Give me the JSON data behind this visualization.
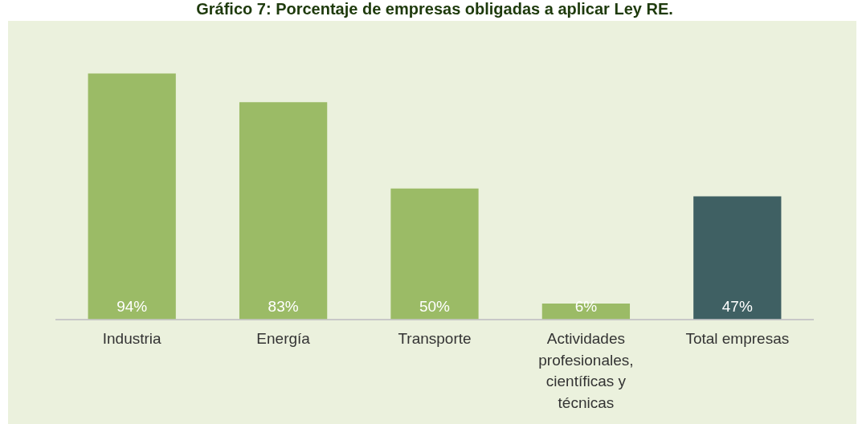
{
  "chart_data": {
    "type": "bar",
    "title": "Gráfico 7: Porcentaje de empresas obligadas a aplicar Ley RE.",
    "categories": [
      "Industria",
      "Energía",
      "Transporte",
      "Actividades profesionales, científicas y técnicas",
      "Total empresas"
    ],
    "values": [
      94,
      83,
      50,
      6,
      47
    ],
    "colors": [
      "#9bbb66",
      "#9bbb66",
      "#9bbb66",
      "#9bbb66",
      "#3f6063"
    ],
    "value_labels": [
      "94%",
      "83%",
      "50%",
      "6%",
      "47%"
    ],
    "grid": false,
    "legend": false
  }
}
